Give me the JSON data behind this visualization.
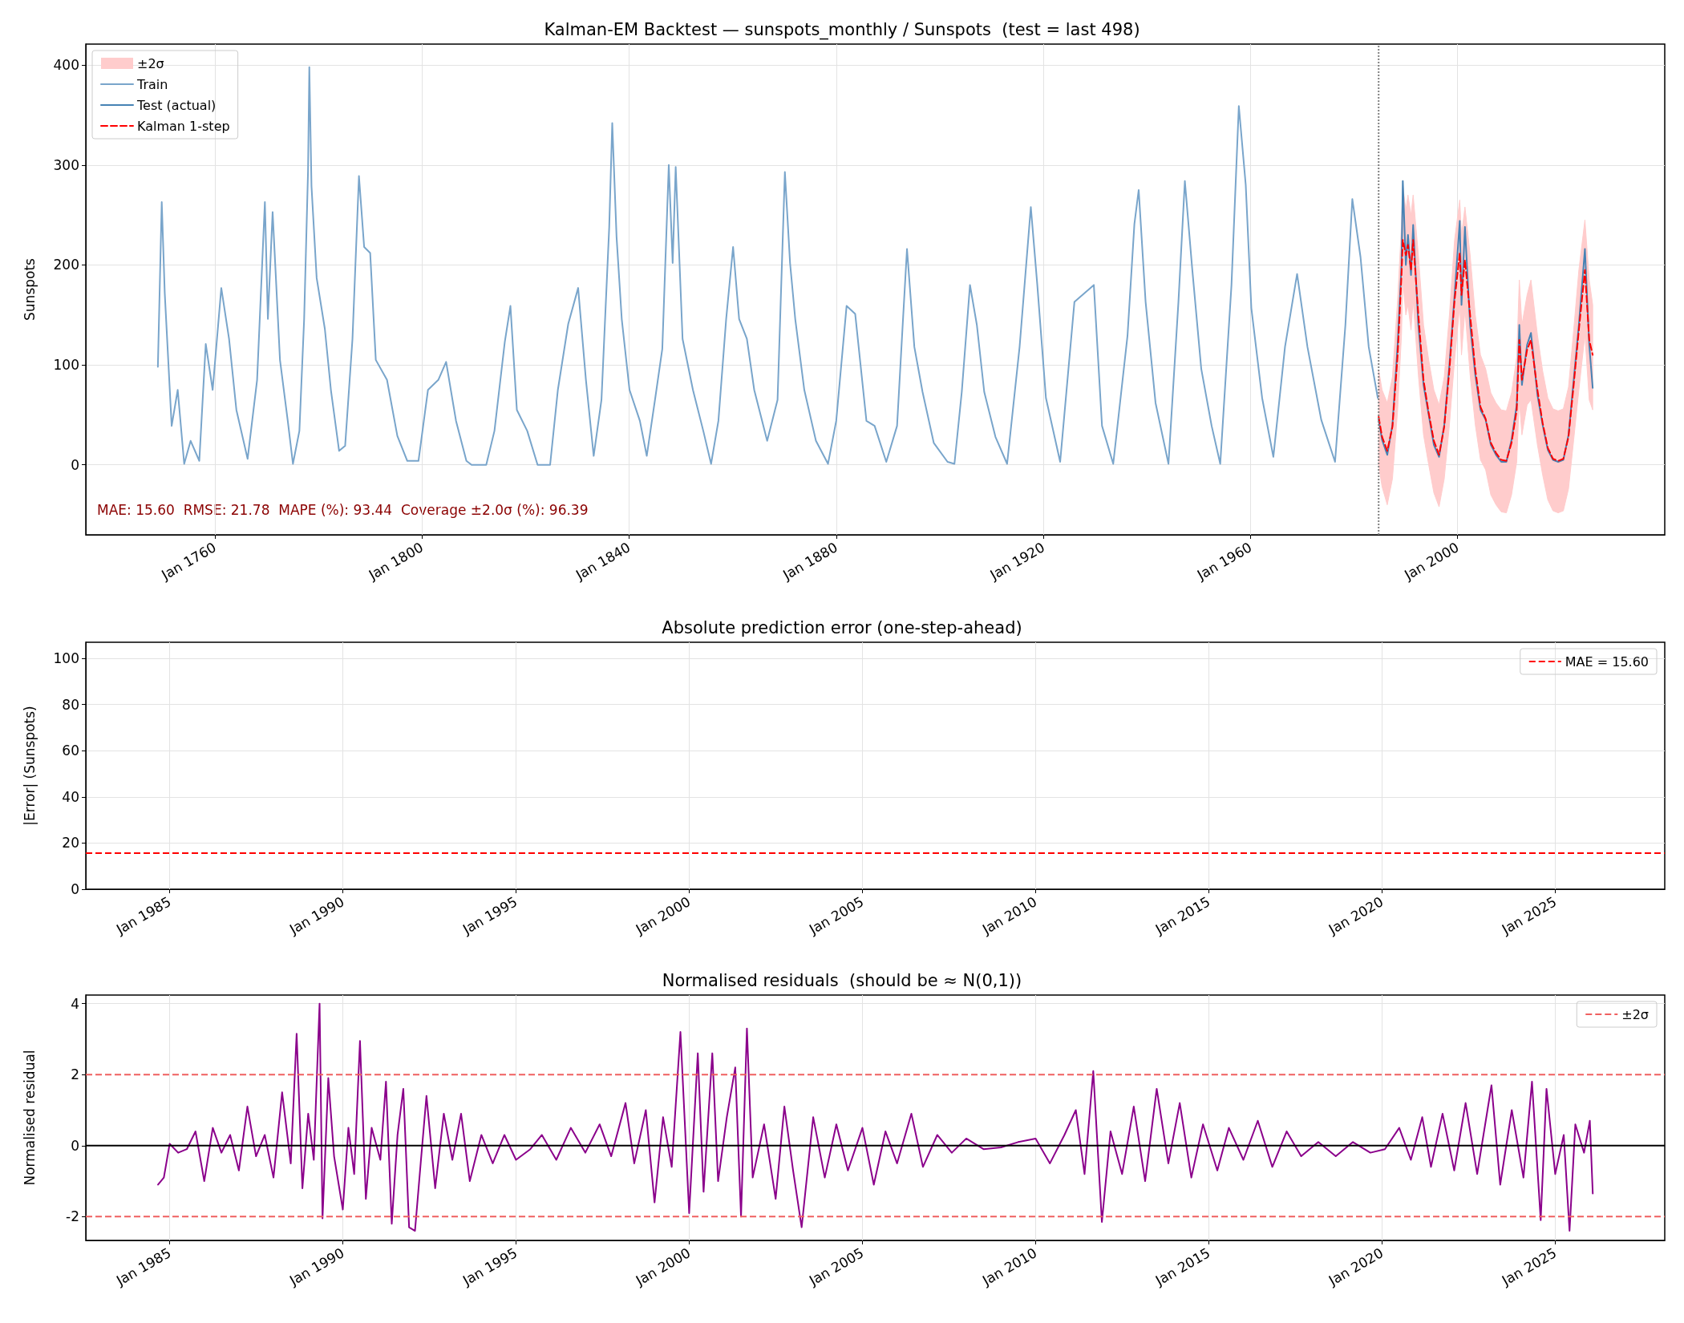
{
  "chart_data": [
    {
      "type": "line",
      "title": "Kalman-EM Backtest — sunspots_monthly / Sunspots  (test = last 498)",
      "ylabel": "Sunspots",
      "legend": "top left",
      "grid": true,
      "xlim": [
        "1735-02",
        "2040-01"
      ],
      "xticks": [
        {
          "value": "1760-01",
          "label": "Jan 1760"
        },
        {
          "value": "1800-01",
          "label": "Jan 1800"
        },
        {
          "value": "1840-01",
          "label": "Jan 1840"
        },
        {
          "value": "1880-01",
          "label": "Jan 1880"
        },
        {
          "value": "1920-01",
          "label": "Jan 1920"
        },
        {
          "value": "1960-01",
          "label": "Jan 1960"
        },
        {
          "value": "2000-01",
          "label": "Jan 2000"
        }
      ],
      "ylim": [
        -70,
        421
      ],
      "yticks": [
        0,
        100,
        200,
        300,
        400
      ],
      "annotations": [
        "MAE: 15.60  RMSE: 21.78  MAPE (%): 93.44  Coverage ±2.0σ (%): 96.39"
      ],
      "ref_lines": [
        {
          "axis": "x",
          "value": "1984-10",
          "color": "#808080",
          "line_style": "dotted"
        }
      ],
      "series": [
        {
          "name": "±2σ",
          "type": "area",
          "color": "#ffcccc",
          "values": [
            null,
            null,
            null,
            null,
            null,
            null,
            null,
            null,
            null,
            null,
            null,
            null,
            null,
            null,
            null,
            null,
            null,
            null,
            null,
            null,
            null,
            null,
            null,
            null,
            null,
            null,
            null,
            null,
            null,
            null,
            null,
            null,
            null,
            null,
            null,
            null,
            null,
            null,
            null,
            null,
            null,
            null,
            null,
            null,
            null,
            null,
            null,
            null
          ],
          "x": [
            "1984-10",
            "1985-06",
            "1986-06",
            "1987-06",
            "1988-06",
            "1989-03",
            "1989-06",
            "1990-01",
            "1990-06",
            "1991-01",
            "1991-06",
            "1992-06",
            "1993-06",
            "1994-06",
            "1995-06",
            "1996-06",
            "1997-06",
            "1998-06",
            "1999-06",
            "2000-06",
            "2000-10",
            "2001-06",
            "2002-06",
            "2003-06",
            "2004-06",
            "2005-06",
            "2006-06",
            "2007-06",
            "2008-06",
            "2009-06",
            "2010-06",
            "2011-06",
            "2011-12",
            "2012-06",
            "2013-06",
            "2014-03",
            "2015-06",
            "2016-06",
            "2017-06",
            "2018-06",
            "2019-06",
            "2020-06",
            "2021-06",
            "2022-06",
            "2023-06",
            "2024-08",
            "2025-06",
            "2026-02"
          ],
          "lower": [
            0,
            -22,
            -40,
            -14,
            55,
            130,
            185,
            150,
            160,
            135,
            165,
            90,
            30,
            0,
            -28,
            -42,
            -14,
            40,
            105,
            160,
            110,
            155,
            90,
            40,
            5,
            -5,
            -30,
            -40,
            -47,
            -48,
            -30,
            3,
            65,
            30,
            60,
            65,
            20,
            -10,
            -35,
            -46,
            -48,
            -46,
            -24,
            25,
            75,
            130,
            65,
            55
          ],
          "upper": [
            95,
            75,
            62,
            88,
            165,
            240,
            280,
            255,
            270,
            250,
            270,
            210,
            140,
            105,
            75,
            60,
            88,
            150,
            225,
            265,
            230,
            258,
            210,
            150,
            110,
            96,
            72,
            62,
            55,
            54,
            72,
            108,
            185,
            140,
            170,
            185,
            130,
            94,
            67,
            56,
            54,
            56,
            78,
            135,
            195,
            245,
            185,
            160
          ]
        },
        {
          "name": "Train",
          "color": "#79a5cb",
          "x": [
            "1749-01",
            "1749-10",
            "1750-05",
            "1751-09",
            "1752-11",
            "1754-02",
            "1755-05",
            "1757-01",
            "1758-04",
            "1759-08",
            "1761-04",
            "1762-10",
            "1764-03",
            "1766-05",
            "1768-03",
            "1769-09",
            "1770-04",
            "1771-03",
            "1772-08",
            "1774-02",
            "1775-02",
            "1776-05",
            "1777-04",
            "1778-01",
            "1778-04",
            "1778-09",
            "1779-09",
            "1781-04",
            "1782-06",
            "1784-01",
            "1785-03",
            "1786-08",
            "1787-11",
            "1788-11",
            "1790-01",
            "1791-02",
            "1793-04",
            "1795-04",
            "1797-03",
            "1799-05",
            "1801-03",
            "1803-03",
            "1804-09",
            "1806-08",
            "1808-08",
            "1809-08",
            "1812-06",
            "1814-01",
            "1816-01",
            "1817-02",
            "1818-05",
            "1820-05",
            "1822-05",
            "1824-10",
            "1826-04",
            "1828-04",
            "1830-03",
            "1831-09",
            "1833-03",
            "1834-09",
            "1836-03",
            "1836-10",
            "1837-08",
            "1838-08",
            "1840-02",
            "1842-02",
            "1843-06",
            "1845-01",
            "1846-06",
            "1847-09",
            "1848-06",
            "1849-01",
            "1850-05",
            "1852-05",
            "1854-05",
            "1855-11",
            "1857-04",
            "1858-10",
            "1860-02",
            "1861-04",
            "1862-10",
            "1864-03",
            "1866-09",
            "1868-09",
            "1870-02",
            "1871-02",
            "1872-02",
            "1873-11",
            "1876-02",
            "1878-06",
            "1880-01",
            "1882-01",
            "1883-09",
            "1885-11",
            "1887-06",
            "1889-09",
            "1891-10",
            "1892-11",
            "1893-09",
            "1895-02",
            "1896-09",
            "1898-11",
            "1901-07",
            "1902-11",
            "1904-04",
            "1905-11",
            "1907-03",
            "1908-08",
            "1910-10",
            "1913-01",
            "1915-06",
            "1917-08",
            "1918-11",
            "1920-07",
            "1923-04",
            "1926-01",
            "1929-10",
            "1931-05",
            "1933-07",
            "1936-04",
            "1937-08",
            "1938-06",
            "1939-10",
            "1941-09",
            "1944-03",
            "1946-02",
            "1947-05",
            "1948-10",
            "1950-07",
            "1952-07",
            "1954-03",
            "1956-05",
            "1957-10",
            "1959-02",
            "1960-03",
            "1962-04",
            "1964-06",
            "1966-09",
            "1969-01",
            "1971-01",
            "1973-09",
            "1976-05",
            "1978-05",
            "1979-09",
            "1981-04",
            "1982-11",
            "1984-08"
          ],
          "values": [
            98,
            263,
            172,
            39,
            75,
            1,
            24,
            4,
            121,
            75,
            177,
            126,
            55,
            6,
            85,
            263,
            146,
            253,
            105,
            44,
            1,
            34,
            146,
            294,
            398,
            279,
            187,
            136,
            75,
            14,
            19,
            126,
            289,
            218,
            212,
            105,
            85,
            29,
            4,
            4,
            75,
            85,
            103,
            44,
            4,
            0,
            0,
            34,
            123,
            159,
            55,
            34,
            0,
            0,
            75,
            141,
            177,
            85,
            9,
            65,
            238,
            342,
            228,
            146,
            75,
            44,
            9,
            65,
            116,
            300,
            202,
            298,
            126,
            75,
            34,
            1,
            44,
            146,
            218,
            146,
            126,
            75,
            24,
            65,
            293,
            202,
            146,
            75,
            24,
            1,
            44,
            159,
            151,
            44,
            39,
            3,
            39,
            140,
            216,
            118,
            73,
            22,
            3,
            1,
            73,
            180,
            140,
            73,
            28,
            1,
            118,
            258,
            180,
            67,
            3,
            163,
            180,
            39,
            1,
            129,
            241,
            275,
            163,
            62,
            1,
            163,
            284,
            196,
            96,
            39,
            1,
            180,
            359,
            280,
            157,
            67,
            8,
            118,
            191,
            118,
            45,
            3,
            140,
            266,
            208,
            118,
            67
          ]
        },
        {
          "name": "Test (actual)",
          "color": "#4682b4",
          "x": [
            "1984-10",
            "1985-06",
            "1986-06",
            "1987-06",
            "1988-06",
            "1989-03",
            "1989-06",
            "1990-01",
            "1990-06",
            "1991-01",
            "1991-06",
            "1992-06",
            "1993-06",
            "1994-06",
            "1995-06",
            "1996-06",
            "1997-06",
            "1998-06",
            "1999-06",
            "2000-06",
            "2000-10",
            "2001-06",
            "2002-06",
            "2003-06",
            "2004-06",
            "2005-06",
            "2006-06",
            "2007-06",
            "2008-06",
            "2009-06",
            "2010-06",
            "2011-06",
            "2011-12",
            "2012-06",
            "2013-06",
            "2014-03",
            "2015-06",
            "2016-06",
            "2017-06",
            "2018-06",
            "2019-06",
            "2020-06",
            "2021-06",
            "2022-06",
            "2023-06",
            "2024-08",
            "2025-06",
            "2026-02"
          ],
          "values": [
            45,
            25,
            10,
            40,
            120,
            200,
            284,
            200,
            230,
            190,
            240,
            140,
            80,
            50,
            20,
            8,
            40,
            100,
            170,
            244,
            160,
            238,
            140,
            90,
            55,
            45,
            20,
            10,
            3,
            3,
            25,
            60,
            140,
            80,
            120,
            132,
            70,
            40,
            15,
            5,
            3,
            5,
            30,
            85,
            140,
            216,
            120,
            77
          ]
        },
        {
          "name": "Kalman 1-step",
          "color": "#ff0000",
          "line_style": "dashed",
          "x": [
            "1984-10",
            "1985-06",
            "1986-06",
            "1987-06",
            "1988-06",
            "1989-03",
            "1989-06",
            "1990-01",
            "1990-06",
            "1991-01",
            "1991-06",
            "1992-06",
            "1993-06",
            "1994-06",
            "1995-06",
            "1996-06",
            "1997-06",
            "1998-06",
            "1999-06",
            "2000-06",
            "2000-10",
            "2001-06",
            "2002-06",
            "2003-06",
            "2004-06",
            "2005-06",
            "2006-06",
            "2007-06",
            "2008-06",
            "2009-06",
            "2010-06",
            "2011-06",
            "2011-12",
            "2012-06",
            "2013-06",
            "2014-03",
            "2015-06",
            "2016-06",
            "2017-06",
            "2018-06",
            "2019-06",
            "2020-06",
            "2021-06",
            "2022-06",
            "2023-06",
            "2024-08",
            "2025-06",
            "2026-02"
          ],
          "values": [
            48,
            28,
            14,
            38,
            110,
            190,
            225,
            210,
            220,
            195,
            225,
            150,
            85,
            52,
            24,
            10,
            38,
            95,
            165,
            212,
            170,
            205,
            150,
            95,
            58,
            46,
            22,
            12,
            5,
            4,
            22,
            55,
            125,
            85,
            115,
            125,
            75,
            42,
            17,
            6,
            4,
            6,
            28,
            80,
            135,
            195,
            125,
            110
          ]
        }
      ]
    },
    {
      "type": "line",
      "title": "Absolute prediction error (one-step-ahead)",
      "ylabel": "|Error| (Sunspots)",
      "legend": "top right",
      "grid": true,
      "xlim": [
        "1982-08",
        "2028-03"
      ],
      "xticks": [
        {
          "value": "1985-01",
          "label": "Jan 1985"
        },
        {
          "value": "1990-01",
          "label": "Jan 1990"
        },
        {
          "value": "1995-01",
          "label": "Jan 1995"
        },
        {
          "value": "2000-01",
          "label": "Jan 2000"
        },
        {
          "value": "2005-01",
          "label": "Jan 2005"
        },
        {
          "value": "2010-01",
          "label": "Jan 2010"
        },
        {
          "value": "2015-01",
          "label": "Jan 2015"
        },
        {
          "value": "2020-01",
          "label": "Jan 2020"
        },
        {
          "value": "2025-01",
          "label": "Jan 2025"
        }
      ],
      "ylim": [
        0,
        107
      ],
      "yticks": [
        0,
        20,
        40,
        60,
        80,
        100
      ],
      "ref_lines": [
        {
          "axis": "y",
          "value": 15.6,
          "label": "MAE = 15.60",
          "color": "#ff0000",
          "line_style": "dashed"
        }
      ]
    },
    {
      "type": "line",
      "title": "Normalised residuals  (should be ≈ N(0,1))",
      "ylabel": "Normalised residual",
      "legend": "top right",
      "grid": true,
      "xlim": [
        "1982-08",
        "2028-03"
      ],
      "xticks": [
        {
          "value": "1985-01",
          "label": "Jan 1985"
        },
        {
          "value": "1990-01",
          "label": "Jan 1990"
        },
        {
          "value": "1995-01",
          "label": "Jan 1995"
        },
        {
          "value": "2000-01",
          "label": "Jan 2000"
        },
        {
          "value": "2005-01",
          "label": "Jan 2005"
        },
        {
          "value": "2010-01",
          "label": "Jan 2010"
        },
        {
          "value": "2015-01",
          "label": "Jan 2015"
        },
        {
          "value": "2020-01",
          "label": "Jan 2020"
        },
        {
          "value": "2025-01",
          "label": "Jan 2025"
        }
      ],
      "ylim": [
        -2.67,
        4.24
      ],
      "yticks": [
        -2,
        0,
        2,
        4
      ],
      "ref_lines": [
        {
          "axis": "y",
          "value": 2,
          "label": "±2σ",
          "color": "#f06060",
          "line_style": "dashed"
        },
        {
          "axis": "y",
          "value": -2,
          "color": "#f06060",
          "line_style": "dashed"
        },
        {
          "axis": "y",
          "value": 0,
          "color": "#000000",
          "line_style": "solid"
        }
      ],
      "series": [
        {
          "color": "#8b008b",
          "x": [
            "1984-09",
            "1984-11",
            "1985-01",
            "1985-04",
            "1985-07",
            "1985-10",
            "1986-01",
            "1986-04",
            "1986-07",
            "1986-10",
            "1987-01",
            "1987-04",
            "1987-07",
            "1987-10",
            "1988-01",
            "1988-04",
            "1988-07",
            "1988-09",
            "1988-11",
            "1989-01",
            "1989-03",
            "1989-05",
            "1989-06",
            "1989-08",
            "1989-10",
            "1990-01",
            "1990-03",
            "1990-05",
            "1990-07",
            "1990-09",
            "1990-11",
            "1991-02",
            "1991-04",
            "1991-06",
            "1991-08",
            "1991-10",
            "1991-12",
            "1992-02",
            "1992-04",
            "1992-06",
            "1992-09",
            "1992-12",
            "1993-03",
            "1993-06",
            "1993-09",
            "1994-01",
            "1994-05",
            "1994-09",
            "1995-01",
            "1995-06",
            "1995-10",
            "1996-03",
            "1996-08",
            "1997-01",
            "1997-06",
            "1997-10",
            "1998-03",
            "1998-06",
            "1998-10",
            "1999-01",
            "1999-04",
            "1999-07",
            "1999-10",
            "2000-01",
            "2000-04",
            "2000-06",
            "2000-09",
            "2000-11",
            "2001-02",
            "2001-05",
            "2001-07",
            "2001-09",
            "2001-11",
            "2002-03",
            "2002-07",
            "2002-10",
            "2003-01",
            "2003-04",
            "2003-08",
            "2003-12",
            "2004-04",
            "2004-08",
            "2005-01",
            "2005-05",
            "2005-09",
            "2006-01",
            "2006-06",
            "2006-10",
            "2007-03",
            "2007-08",
            "2008-01",
            "2008-07",
            "2009-01",
            "2009-07",
            "2010-01",
            "2010-06",
            "2010-11",
            "2011-03",
            "2011-06",
            "2011-09",
            "2011-12",
            "2012-03",
            "2012-07",
            "2012-11",
            "2013-03",
            "2013-07",
            "2013-11",
            "2014-03",
            "2014-07",
            "2014-11",
            "2015-04",
            "2015-08",
            "2016-01",
            "2016-06",
            "2016-11",
            "2017-04",
            "2017-09",
            "2018-03",
            "2018-09",
            "2019-03",
            "2019-09",
            "2020-02",
            "2020-07",
            "2020-11",
            "2021-03",
            "2021-06",
            "2021-10",
            "2022-02",
            "2022-06",
            "2022-10",
            "2023-03",
            "2023-06",
            "2023-10",
            "2024-02",
            "2024-05",
            "2024-08",
            "2024-10",
            "2025-01",
            "2025-04",
            "2025-06",
            "2025-08",
            "2025-11",
            "2026-01",
            "2026-02"
          ],
          "values": [
            -1.1,
            -0.9,
            0.05,
            -0.2,
            -0.1,
            0.4,
            -1.0,
            0.5,
            -0.2,
            0.3,
            -0.7,
            1.1,
            -0.3,
            0.3,
            -0.9,
            1.5,
            -0.5,
            3.15,
            -1.2,
            0.9,
            -0.4,
            4.0,
            -2.05,
            1.9,
            -0.3,
            -1.8,
            0.5,
            -0.8,
            2.95,
            -1.5,
            0.5,
            -0.4,
            1.8,
            -2.2,
            0.3,
            1.6,
            -2.3,
            -2.4,
            -0.5,
            1.4,
            -1.2,
            0.9,
            -0.4,
            0.9,
            -1.0,
            0.3,
            -0.5,
            0.3,
            -0.4,
            -0.1,
            0.3,
            -0.4,
            0.5,
            -0.2,
            0.6,
            -0.3,
            1.2,
            -0.5,
            1.0,
            -1.6,
            0.8,
            -0.6,
            3.2,
            -1.9,
            2.6,
            -1.3,
            2.6,
            -1.0,
            0.8,
            2.2,
            -2.0,
            3.3,
            -0.9,
            0.6,
            -1.5,
            1.1,
            -0.7,
            -2.3,
            0.8,
            -0.9,
            0.6,
            -0.7,
            0.5,
            -1.1,
            0.4,
            -0.5,
            0.9,
            -0.6,
            0.3,
            -0.2,
            0.2,
            -0.1,
            -0.05,
            0.1,
            0.2,
            -0.5,
            0.3,
            1.0,
            -0.8,
            2.1,
            -2.15,
            0.4,
            -0.8,
            1.1,
            -1.0,
            1.6,
            -0.5,
            1.2,
            -0.9,
            0.6,
            -0.7,
            0.5,
            -0.4,
            0.7,
            -0.6,
            0.4,
            -0.3,
            0.1,
            -0.3,
            0.1,
            -0.2,
            -0.1,
            0.5,
            -0.4,
            0.8,
            -0.6,
            0.9,
            -0.7,
            1.2,
            -0.8,
            1.7,
            -1.1,
            1.0,
            -0.9,
            1.8,
            -2.1,
            1.6,
            -0.8,
            0.3,
            -2.4,
            0.6,
            -0.2,
            0.7,
            -1.35
          ]
        }
      ]
    }
  ]
}
